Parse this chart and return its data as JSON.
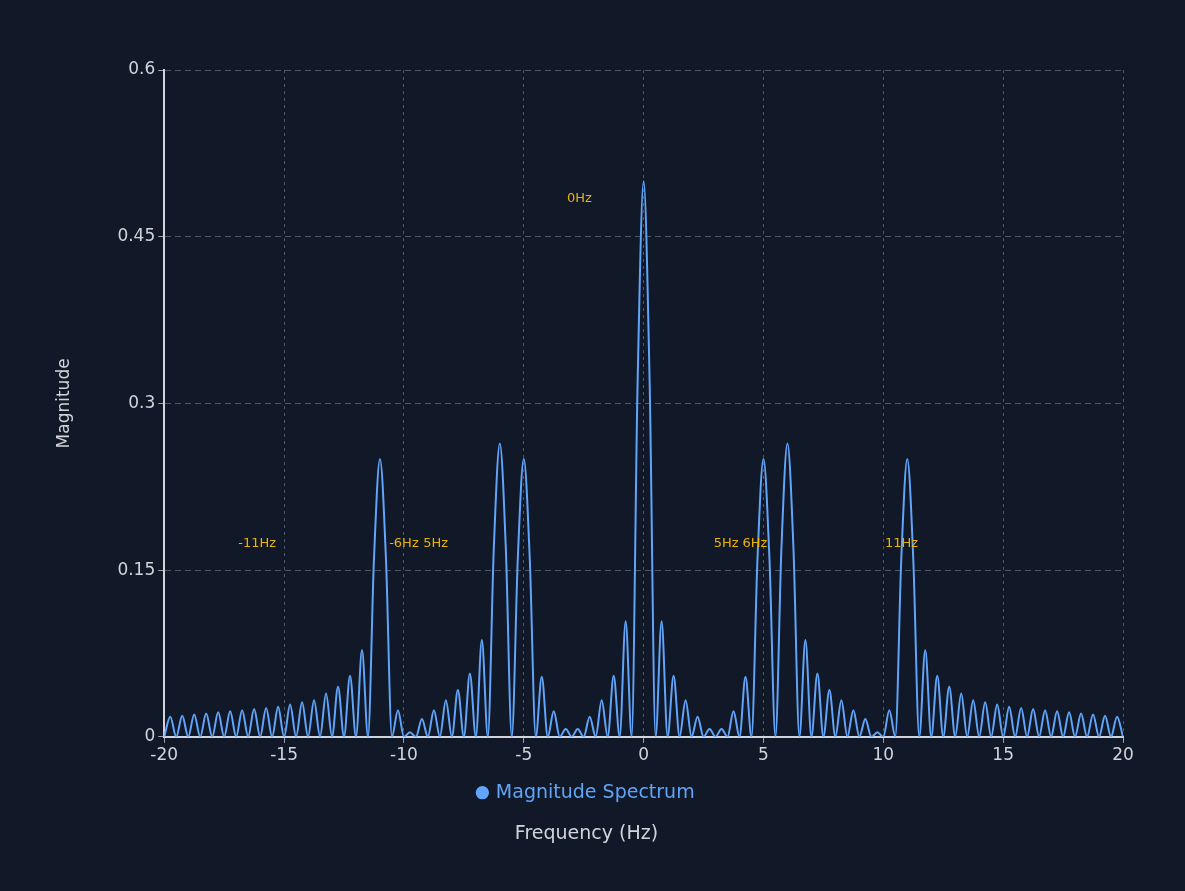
{
  "chart_data": {
    "type": "line",
    "xlabel": "Frequency (Hz)",
    "ylabel": "Magnitude",
    "legend": "bottom",
    "grid": true,
    "marker": "none",
    "line_style": "solid",
    "xlim": [
      -20,
      20
    ],
    "xticks": [
      -20,
      -15,
      -10,
      -5,
      0,
      5,
      10,
      15,
      20
    ],
    "ylim": [
      0,
      0.6
    ],
    "yticks": [
      0,
      0.15,
      0.3,
      0.45,
      0.6
    ],
    "annotations": [
      "-11Hz",
      "-6Hz",
      "5Hz",
      "0Hz",
      "5Hz",
      "6Hz",
      "11Hz"
    ],
    "x": [
      -20,
      -19.75,
      -19.5,
      -19.25,
      -19,
      -18.75,
      -18.5,
      -18.25,
      -18,
      -17.75,
      -17.5,
      -17.25,
      -17,
      -16.75,
      -16.5,
      -16.25,
      -16,
      -15.75,
      -15.5,
      -15.25,
      -15,
      -14.75,
      -14.5,
      -14.25,
      -14,
      -13.75,
      -13.5,
      -13.25,
      -13,
      -12.75,
      -12.5,
      -12.25,
      -12,
      -11.75,
      -11.5,
      -11.25,
      -11,
      -10.75,
      -10.5,
      -10.25,
      -10,
      -9.75,
      -9.5,
      -9.25,
      -9,
      -8.75,
      -8.5,
      -8.25,
      -8,
      -7.75,
      -7.5,
      -7.25,
      -7,
      -6.75,
      -6.5,
      -6.25,
      -6,
      -5.75,
      -5.5,
      -5.25,
      -5,
      -4.75,
      -4.5,
      -4.25,
      -4,
      -3.75,
      -3.5,
      -3.25,
      -3,
      -2.75,
      -2.5,
      -2.25,
      -2,
      -1.75,
      -1.5,
      -1.25,
      -1,
      -0.75,
      -0.5,
      -0.25,
      0,
      0.25,
      0.5,
      0.75,
      1,
      1.25,
      1.5,
      1.75,
      2,
      2.25,
      2.5,
      2.75,
      3,
      3.25,
      3.5,
      3.75,
      4,
      4.25,
      4.5,
      4.75,
      5,
      5.25,
      5.5,
      5.75,
      6,
      6.25,
      6.5,
      6.75,
      7,
      7.25,
      7.5,
      7.75,
      8,
      8.25,
      8.5,
      8.75,
      9,
      9.25,
      9.5,
      9.75,
      10,
      10.25,
      10.5,
      10.75,
      11,
      11.25,
      11.5,
      11.75,
      12,
      12.25,
      12.5,
      12.75,
      13,
      13.25,
      13.5,
      13.75,
      14,
      14.25,
      14.5,
      14.75,
      15,
      15.25,
      15.5,
      15.75,
      16,
      16.25,
      16.5,
      16.75,
      17,
      17.25,
      17.5,
      17.75,
      18,
      18.25,
      18.5,
      18.75,
      19,
      19.25,
      19.5,
      19.75,
      20
    ],
    "series": [
      {
        "name": "Magnitude Spectrum",
        "color": "#60a5fa",
        "values": [
          0,
          0.018,
          0,
          0.019,
          0,
          0.02,
          0,
          0.021,
          0,
          0.022,
          0,
          0.023,
          0,
          0.024,
          0,
          0.025,
          0,
          0.026,
          0,
          0.027,
          0,
          0.029,
          0,
          0.031,
          0,
          0.033,
          0,
          0.039,
          0,
          0.045,
          0,
          0.055,
          0,
          0.078,
          0,
          0.16,
          0.25,
          0.16,
          0,
          0.024,
          0,
          0.004,
          0,
          0.016,
          0,
          0.024,
          0,
          0.033,
          0,
          0.042,
          0,
          0.057,
          0,
          0.087,
          0,
          0.17,
          0.264,
          0.17,
          0,
          0.16,
          0.25,
          0.16,
          0,
          0.054,
          0,
          0.023,
          0,
          0.007,
          0,
          0.007,
          0,
          0.018,
          0,
          0.033,
          0,
          0.055,
          0,
          0.104,
          0,
          0.32,
          0.5,
          0.32,
          0,
          0.104,
          0,
          0.055,
          0,
          0.033,
          0,
          0.018,
          0,
          0.007,
          0,
          0.007,
          0,
          0.023,
          0,
          0.054,
          0,
          0.16,
          0.25,
          0.16,
          0,
          0.17,
          0.264,
          0.17,
          0,
          0.087,
          0,
          0.057,
          0,
          0.042,
          0,
          0.033,
          0,
          0.024,
          0,
          0.016,
          0,
          0.004,
          0,
          0.024,
          0,
          0.16,
          0.25,
          0.16,
          0,
          0.078,
          0,
          0.055,
          0,
          0.045,
          0,
          0.039,
          0,
          0.033,
          0,
          0.031,
          0,
          0.029,
          0,
          0.027,
          0,
          0.026,
          0,
          0.025,
          0,
          0.024,
          0,
          0.023,
          0,
          0.022,
          0,
          0.021,
          0,
          0.02,
          0,
          0.019,
          0,
          0.018,
          0
        ]
      }
    ]
  }
}
